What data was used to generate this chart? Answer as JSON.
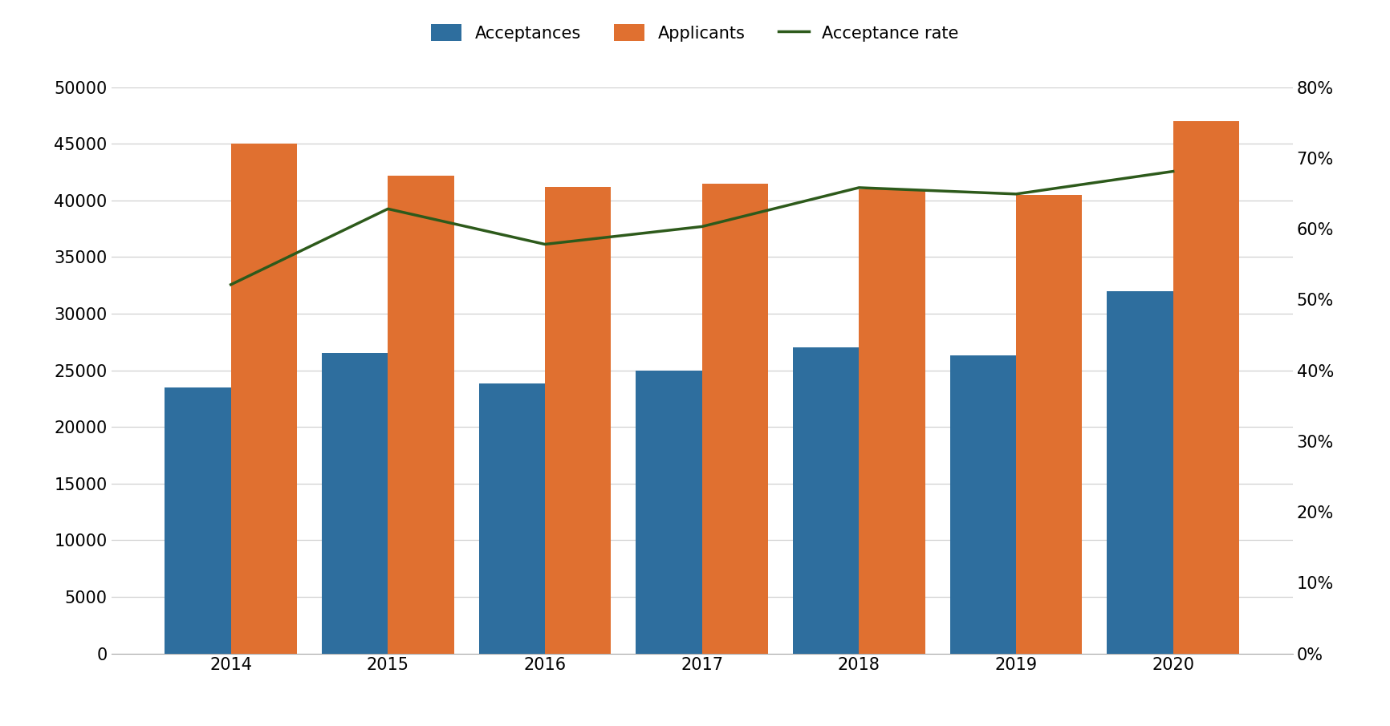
{
  "years": [
    2014,
    2015,
    2016,
    2017,
    2018,
    2019,
    2020
  ],
  "acceptances": [
    23500,
    26500,
    23800,
    25000,
    27000,
    26300,
    32000
  ],
  "applicants": [
    45000,
    42200,
    41200,
    41500,
    41000,
    40500,
    47000
  ],
  "acceptance_rate": [
    0.521,
    0.628,
    0.578,
    0.603,
    0.658,
    0.649,
    0.681
  ],
  "bar_width": 0.42,
  "acceptances_color": "#2e6e9e",
  "applicants_color": "#e07030",
  "rate_color": "#2d5a1b",
  "background_color": "#ffffff",
  "grid_color": "#d0d0d0",
  "ylim_left": [
    0,
    50000
  ],
  "ylim_right": [
    0.0,
    0.8
  ],
  "yticks_left": [
    0,
    5000,
    10000,
    15000,
    20000,
    25000,
    30000,
    35000,
    40000,
    45000,
    50000
  ],
  "yticks_right": [
    0.0,
    0.1,
    0.2,
    0.3,
    0.4,
    0.5,
    0.6,
    0.7,
    0.8
  ],
  "legend_labels": [
    "Acceptances",
    "Applicants",
    "Acceptance rate"
  ],
  "tick_fontsize": 15,
  "legend_fontsize": 15,
  "figsize": [
    17.32,
    9.05
  ],
  "dpi": 100
}
